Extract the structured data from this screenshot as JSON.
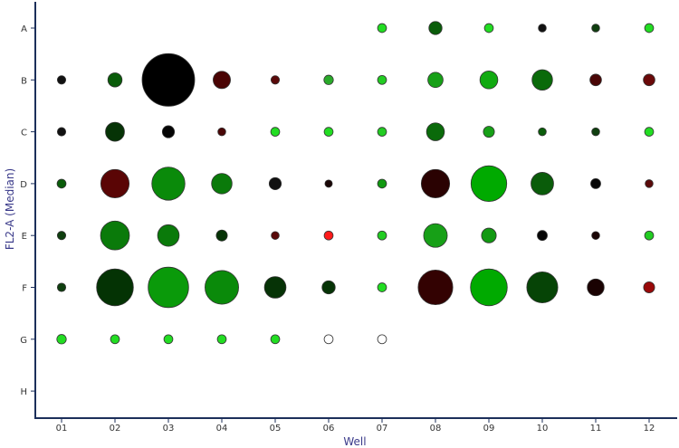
{
  "chart_data": {
    "type": "scatter",
    "subtype": "bubble-plate",
    "title": "",
    "xlabel": "Well",
    "ylabel": "FL2-A (Median)",
    "columns": [
      "01",
      "02",
      "03",
      "04",
      "05",
      "06",
      "07",
      "08",
      "09",
      "10",
      "11",
      "12"
    ],
    "rows": [
      "A",
      "B",
      "C",
      "D",
      "E",
      "F",
      "G",
      "H"
    ],
    "grid": false,
    "legend": "none",
    "wells": [
      {
        "row": "A",
        "col": "07",
        "size": 0.17,
        "color": "#22dd22"
      },
      {
        "row": "A",
        "col": "08",
        "size": 0.25,
        "color": "#0a5c0a"
      },
      {
        "row": "A",
        "col": "09",
        "size": 0.17,
        "color": "#22dd22"
      },
      {
        "row": "A",
        "col": "10",
        "size": 0.15,
        "color": "#111111"
      },
      {
        "row": "A",
        "col": "11",
        "size": 0.15,
        "color": "#0f3f0f"
      },
      {
        "row": "A",
        "col": "12",
        "size": 0.17,
        "color": "#22dd22"
      },
      {
        "row": "B",
        "col": "01",
        "size": 0.16,
        "color": "#111111"
      },
      {
        "row": "B",
        "col": "02",
        "size": 0.27,
        "color": "#0a5c0a"
      },
      {
        "row": "B",
        "col": "03",
        "size": 1.0,
        "color": "#000000"
      },
      {
        "row": "B",
        "col": "04",
        "size": 0.33,
        "color": "#4a0404"
      },
      {
        "row": "B",
        "col": "05",
        "size": 0.16,
        "color": "#5a0a0a"
      },
      {
        "row": "B",
        "col": "06",
        "size": 0.18,
        "color": "#2aaa2a"
      },
      {
        "row": "B",
        "col": "07",
        "size": 0.17,
        "color": "#22cc22"
      },
      {
        "row": "B",
        "col": "08",
        "size": 0.29,
        "color": "#17a017"
      },
      {
        "row": "B",
        "col": "09",
        "size": 0.34,
        "color": "#11aa11"
      },
      {
        "row": "B",
        "col": "10",
        "size": 0.39,
        "color": "#0a6a0a"
      },
      {
        "row": "B",
        "col": "11",
        "size": 0.22,
        "color": "#4a0606"
      },
      {
        "row": "B",
        "col": "12",
        "size": 0.22,
        "color": "#6a0909"
      },
      {
        "row": "C",
        "col": "01",
        "size": 0.16,
        "color": "#111111"
      },
      {
        "row": "C",
        "col": "02",
        "size": 0.36,
        "color": "#063306"
      },
      {
        "row": "C",
        "col": "03",
        "size": 0.23,
        "color": "#050505"
      },
      {
        "row": "C",
        "col": "04",
        "size": 0.15,
        "color": "#4a0606"
      },
      {
        "row": "C",
        "col": "05",
        "size": 0.17,
        "color": "#22dd22"
      },
      {
        "row": "C",
        "col": "06",
        "size": 0.17,
        "color": "#22dd22"
      },
      {
        "row": "C",
        "col": "07",
        "size": 0.17,
        "color": "#22cc22"
      },
      {
        "row": "C",
        "col": "08",
        "size": 0.34,
        "color": "#0a6a0a"
      },
      {
        "row": "C",
        "col": "09",
        "size": 0.21,
        "color": "#17a017"
      },
      {
        "row": "C",
        "col": "10",
        "size": 0.15,
        "color": "#0a5c0a"
      },
      {
        "row": "C",
        "col": "11",
        "size": 0.15,
        "color": "#0f3f0f"
      },
      {
        "row": "C",
        "col": "12",
        "size": 0.17,
        "color": "#22dd22"
      },
      {
        "row": "D",
        "col": "01",
        "size": 0.17,
        "color": "#0a5c0a"
      },
      {
        "row": "D",
        "col": "02",
        "size": 0.54,
        "color": "#5a0505"
      },
      {
        "row": "D",
        "col": "03",
        "size": 0.63,
        "color": "#0a8a0a"
      },
      {
        "row": "D",
        "col": "04",
        "size": 0.39,
        "color": "#0a7a0a"
      },
      {
        "row": "D",
        "col": "05",
        "size": 0.23,
        "color": "#111111"
      },
      {
        "row": "D",
        "col": "06",
        "size": 0.14,
        "color": "#1a0606"
      },
      {
        "row": "D",
        "col": "07",
        "size": 0.17,
        "color": "#119911"
      },
      {
        "row": "D",
        "col": "08",
        "size": 0.54,
        "color": "#2a0202"
      },
      {
        "row": "D",
        "col": "09",
        "size": 0.68,
        "color": "#00aa00"
      },
      {
        "row": "D",
        "col": "10",
        "size": 0.43,
        "color": "#0a5c0a"
      },
      {
        "row": "D",
        "col": "11",
        "size": 0.19,
        "color": "#050505"
      },
      {
        "row": "D",
        "col": "12",
        "size": 0.15,
        "color": "#5a0a0a"
      },
      {
        "row": "E",
        "col": "01",
        "size": 0.16,
        "color": "#0f3f0f"
      },
      {
        "row": "E",
        "col": "02",
        "size": 0.55,
        "color": "#0a7a0a"
      },
      {
        "row": "E",
        "col": "03",
        "size": 0.41,
        "color": "#0a7a0a"
      },
      {
        "row": "E",
        "col": "04",
        "size": 0.21,
        "color": "#063306"
      },
      {
        "row": "E",
        "col": "05",
        "size": 0.15,
        "color": "#5a0a0a"
      },
      {
        "row": "E",
        "col": "06",
        "size": 0.17,
        "color": "#ff1a1a"
      },
      {
        "row": "E",
        "col": "07",
        "size": 0.17,
        "color": "#22cc22"
      },
      {
        "row": "E",
        "col": "08",
        "size": 0.45,
        "color": "#17a017"
      },
      {
        "row": "E",
        "col": "09",
        "size": 0.28,
        "color": "#119911"
      },
      {
        "row": "E",
        "col": "10",
        "size": 0.19,
        "color": "#050505"
      },
      {
        "row": "E",
        "col": "11",
        "size": 0.15,
        "color": "#1a0606"
      },
      {
        "row": "E",
        "col": "12",
        "size": 0.17,
        "color": "#22cc22"
      },
      {
        "row": "F",
        "col": "01",
        "size": 0.16,
        "color": "#0f3f0f"
      },
      {
        "row": "F",
        "col": "02",
        "size": 0.7,
        "color": "#043304"
      },
      {
        "row": "F",
        "col": "03",
        "size": 0.77,
        "color": "#0a9a0a"
      },
      {
        "row": "F",
        "col": "04",
        "size": 0.64,
        "color": "#0a8a0a"
      },
      {
        "row": "F",
        "col": "05",
        "size": 0.41,
        "color": "#063306"
      },
      {
        "row": "F",
        "col": "06",
        "size": 0.25,
        "color": "#063306"
      },
      {
        "row": "F",
        "col": "07",
        "size": 0.17,
        "color": "#22dd22"
      },
      {
        "row": "F",
        "col": "08",
        "size": 0.66,
        "color": "#330202"
      },
      {
        "row": "F",
        "col": "09",
        "size": 0.7,
        "color": "#00aa00"
      },
      {
        "row": "F",
        "col": "10",
        "size": 0.59,
        "color": "#064406"
      },
      {
        "row": "F",
        "col": "11",
        "size": 0.32,
        "color": "#1a0202"
      },
      {
        "row": "F",
        "col": "12",
        "size": 0.21,
        "color": "#990909"
      },
      {
        "row": "G",
        "col": "01",
        "size": 0.18,
        "color": "#22dd22"
      },
      {
        "row": "G",
        "col": "02",
        "size": 0.17,
        "color": "#22dd22"
      },
      {
        "row": "G",
        "col": "03",
        "size": 0.17,
        "color": "#22dd22"
      },
      {
        "row": "G",
        "col": "04",
        "size": 0.17,
        "color": "#22dd22"
      },
      {
        "row": "G",
        "col": "05",
        "size": 0.17,
        "color": "#22dd22"
      },
      {
        "row": "G",
        "col": "06",
        "size": 0.17,
        "color": "#ffffff"
      },
      {
        "row": "G",
        "col": "07",
        "size": 0.17,
        "color": "#ffffff"
      }
    ]
  }
}
